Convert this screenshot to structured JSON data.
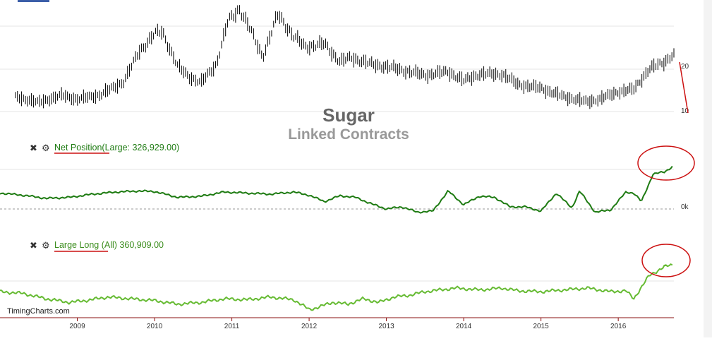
{
  "chart_title": "Sugar",
  "chart_subtitle": "Linked Contracts",
  "watermark": "TimingCharts.com",
  "colors": {
    "price_bars": "#000000",
    "net_line": "#1e7b12",
    "long_line": "#66bb33",
    "annotation": "#cc1111",
    "grid": "#e6e6e6",
    "axis_line": "#8b1010",
    "title_text": "#666666",
    "subtitle_text": "#999999",
    "label_text": "#333333"
  },
  "panels": {
    "net": {
      "close_icon": "close-icon",
      "settings_icon": "gear-icon",
      "link": "Net Position",
      "rest": "(Large: 326,929.00)"
    },
    "long": {
      "close_icon": "close-icon",
      "settings_icon": "gear-icon",
      "link": "Large Long",
      "rest": " (All) 360,909.00"
    }
  },
  "chart_data": [
    {
      "type": "bar",
      "ohlc": true,
      "y_ticks": [
        10,
        20
      ],
      "x": [
        2008.2,
        2008.5,
        2008.8,
        2009.0,
        2009.3,
        2009.6,
        2009.8,
        2010.0,
        2010.1,
        2010.3,
        2010.45,
        2010.6,
        2010.8,
        2010.95,
        2011.1,
        2011.25,
        2011.4,
        2011.6,
        2011.8,
        2011.95,
        2012.2,
        2012.4,
        2012.55,
        2012.8,
        2013.0,
        2013.3,
        2013.5,
        2013.8,
        2014.0,
        2014.2,
        2014.5,
        2014.7,
        2015.0,
        2015.3,
        2015.6,
        2015.75,
        2016.0,
        2016.2,
        2016.4,
        2016.6,
        2016.7
      ],
      "values": [
        13.0,
        11.9,
        13.3,
        12.5,
        13.4,
        16.0,
        22.0,
        25.5,
        26.0,
        19.0,
        17.0,
        15.8,
        19.5,
        28.0,
        30.6,
        26.0,
        21.0,
        29.5,
        25.0,
        23.0,
        23.5,
        20.0,
        20.8,
        19.5,
        19.0,
        18.0,
        17.3,
        18.0,
        16.2,
        17.5,
        17.5,
        15.5,
        14.7,
        13.0,
        12.0,
        12.5,
        14.0,
        14.5,
        18.5,
        20.0,
        21.3
      ],
      "xticks": [
        "2009",
        "2010",
        "2011",
        "2012",
        "2013",
        "2014",
        "2015",
        "2016"
      ],
      "ylim": [
        9.5,
        32
      ]
    },
    {
      "type": "line",
      "series": [
        {
          "name": "Net Position",
          "x": [
            2008.0,
            2008.3,
            2008.6,
            2008.9,
            2009.2,
            2009.5,
            2009.8,
            2010.0,
            2010.3,
            2010.6,
            2010.9,
            2011.2,
            2011.5,
            2011.8,
            2012.0,
            2012.2,
            2012.4,
            2012.6,
            2012.8,
            2013.0,
            2013.2,
            2013.4,
            2013.6,
            2013.8,
            2014.0,
            2014.2,
            2014.4,
            2014.6,
            2014.8,
            2015.0,
            2015.2,
            2015.4,
            2015.5,
            2015.7,
            2015.9,
            2016.1,
            2016.2,
            2016.3,
            2016.45,
            2016.6,
            2016.7
          ],
          "values": [
            80,
            60,
            30,
            40,
            70,
            90,
            100,
            95,
            40,
            50,
            90,
            80,
            70,
            90,
            60,
            0,
            55,
            40,
            -20,
            -70,
            -50,
            -100,
            -90,
            100,
            -30,
            50,
            40,
            -50,
            -50,
            -90,
            80,
            -60,
            100,
            -100,
            -80,
            90,
            80,
            0,
            260,
            280,
            330
          ]
        }
      ],
      "zero_label": "0k",
      "ylim": [
        -110,
        370
      ]
    },
    {
      "type": "line",
      "series": [
        {
          "name": "Large Long",
          "x": [
            2008.0,
            2008.3,
            2008.6,
            2008.9,
            2009.1,
            2009.4,
            2009.7,
            2010.0,
            2010.3,
            2010.6,
            2010.9,
            2011.2,
            2011.5,
            2011.8,
            2012.0,
            2012.1,
            2012.3,
            2012.5,
            2012.7,
            2012.9,
            2013.1,
            2013.3,
            2013.5,
            2013.7,
            2013.9,
            2014.2,
            2014.5,
            2014.7,
            2015.0,
            2015.3,
            2015.6,
            2015.9,
            2016.1,
            2016.2,
            2016.4,
            2016.6,
            2016.7
          ],
          "values": [
            210,
            200,
            170,
            150,
            160,
            180,
            170,
            160,
            140,
            150,
            170,
            165,
            180,
            165,
            110,
            120,
            150,
            140,
            170,
            150,
            180,
            190,
            210,
            220,
            230,
            220,
            230,
            215,
            210,
            220,
            230,
            210,
            215,
            170,
            300,
            350,
            360
          ]
        }
      ],
      "ylim": [
        80,
        420
      ]
    }
  ]
}
